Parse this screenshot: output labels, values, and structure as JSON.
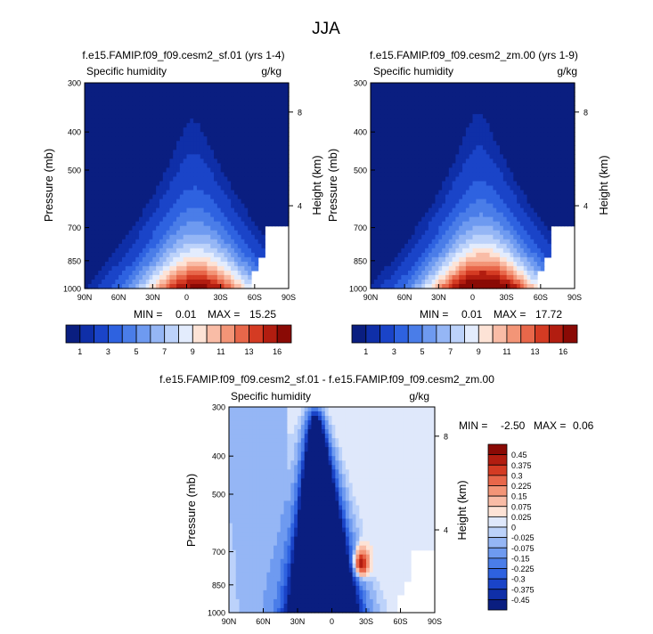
{
  "figure_title": "JJA",
  "colors": {
    "abs_scale": [
      "#0a1e80",
      "#0f2fa8",
      "#1a44c8",
      "#2e62e0",
      "#4a7de8",
      "#6e9af0",
      "#95b6f5",
      "#bcd2fa",
      "#e3ecfd",
      "#fde3d6",
      "#f9bca6",
      "#f39577",
      "#e8674a",
      "#d43b23",
      "#b21d10",
      "#8a0a05"
    ],
    "diff_scale": [
      "#0a1e80",
      "#0f2fa8",
      "#1a44c8",
      "#2e62e0",
      "#4a7de8",
      "#6e9af0",
      "#95b6f5",
      "#bcd2fa",
      "#dfe8fb",
      "#fde3d6",
      "#f9bca6",
      "#f39577",
      "#e8674a",
      "#d43b23",
      "#b21d10",
      "#8a0a05"
    ]
  },
  "chart_data": [
    {
      "type": "heatmap",
      "title": "f.e15.FAMIP.f09_f09.cesm2_sf.01 (yrs 1-4)",
      "left_label": "Specific humidity",
      "units": "g/kg",
      "ylabel": "Pressure (mb)",
      "ylabel_right": "Height (km)",
      "x_ticks": [
        "90N",
        "60N",
        "30N",
        "0",
        "30S",
        "60S",
        "90S"
      ],
      "y_ticks": [
        "300",
        "400",
        "500",
        "700",
        "850",
        "1000"
      ],
      "y_ticks_right": [
        "8",
        "4"
      ],
      "min_label": "MIN =",
      "min_value": "0.01",
      "max_label": "MAX =",
      "max_value": "15.25",
      "colorbar_labels": [
        "1",
        "3",
        "5",
        "7",
        "9",
        "11",
        "13",
        "16"
      ],
      "peak_latitude": -10,
      "peak_value": 15.25
    },
    {
      "type": "heatmap",
      "title": "f.e15.FAMIP.f09_f09.cesm2_zm.00 (yrs 1-9)",
      "left_label": "Specific humidity",
      "units": "g/kg",
      "ylabel": "Pressure (mb)",
      "ylabel_right": "Height (km)",
      "x_ticks": [
        "90N",
        "60N",
        "30N",
        "0",
        "30S",
        "60S",
        "90S"
      ],
      "y_ticks": [
        "300",
        "400",
        "500",
        "700",
        "850",
        "1000"
      ],
      "y_ticks_right": [
        "8",
        "4"
      ],
      "min_label": "MIN =",
      "min_value": "0.01",
      "max_label": "MAX =",
      "max_value": "17.72",
      "colorbar_labels": [
        "1",
        "3",
        "5",
        "7",
        "9",
        "11",
        "13",
        "16"
      ],
      "peak_latitude": -10,
      "peak_value": 17.72
    },
    {
      "type": "heatmap",
      "title": "f.e15.FAMIP.f09_f09.cesm2_sf.01 - f.e15.FAMIP.f09_f09.cesm2_zm.00",
      "left_label": "Specific humidity",
      "units": "g/kg",
      "ylabel": "Pressure (mb)",
      "ylabel_right": "Height (km)",
      "x_ticks": [
        "90N",
        "60N",
        "30N",
        "0",
        "30S",
        "60S",
        "90S"
      ],
      "y_ticks": [
        "300",
        "400",
        "500",
        "700",
        "850",
        "1000"
      ],
      "y_ticks_right": [
        "8",
        "4"
      ],
      "min_label": "MIN =",
      "min_value": "-2.50",
      "max_label": "MAX =",
      "max_value": "0.06",
      "colorbar_labels": [
        "0.45",
        "0.375",
        "0.3",
        "0.225",
        "0.15",
        "0.075",
        "0.025",
        "0",
        "-0.025",
        "-0.075",
        "-0.15",
        "-0.225",
        "-0.3",
        "-0.375",
        "-0.45"
      ],
      "positive_anomaly_latitude": -25,
      "positive_anomaly_pressure": 750
    }
  ]
}
